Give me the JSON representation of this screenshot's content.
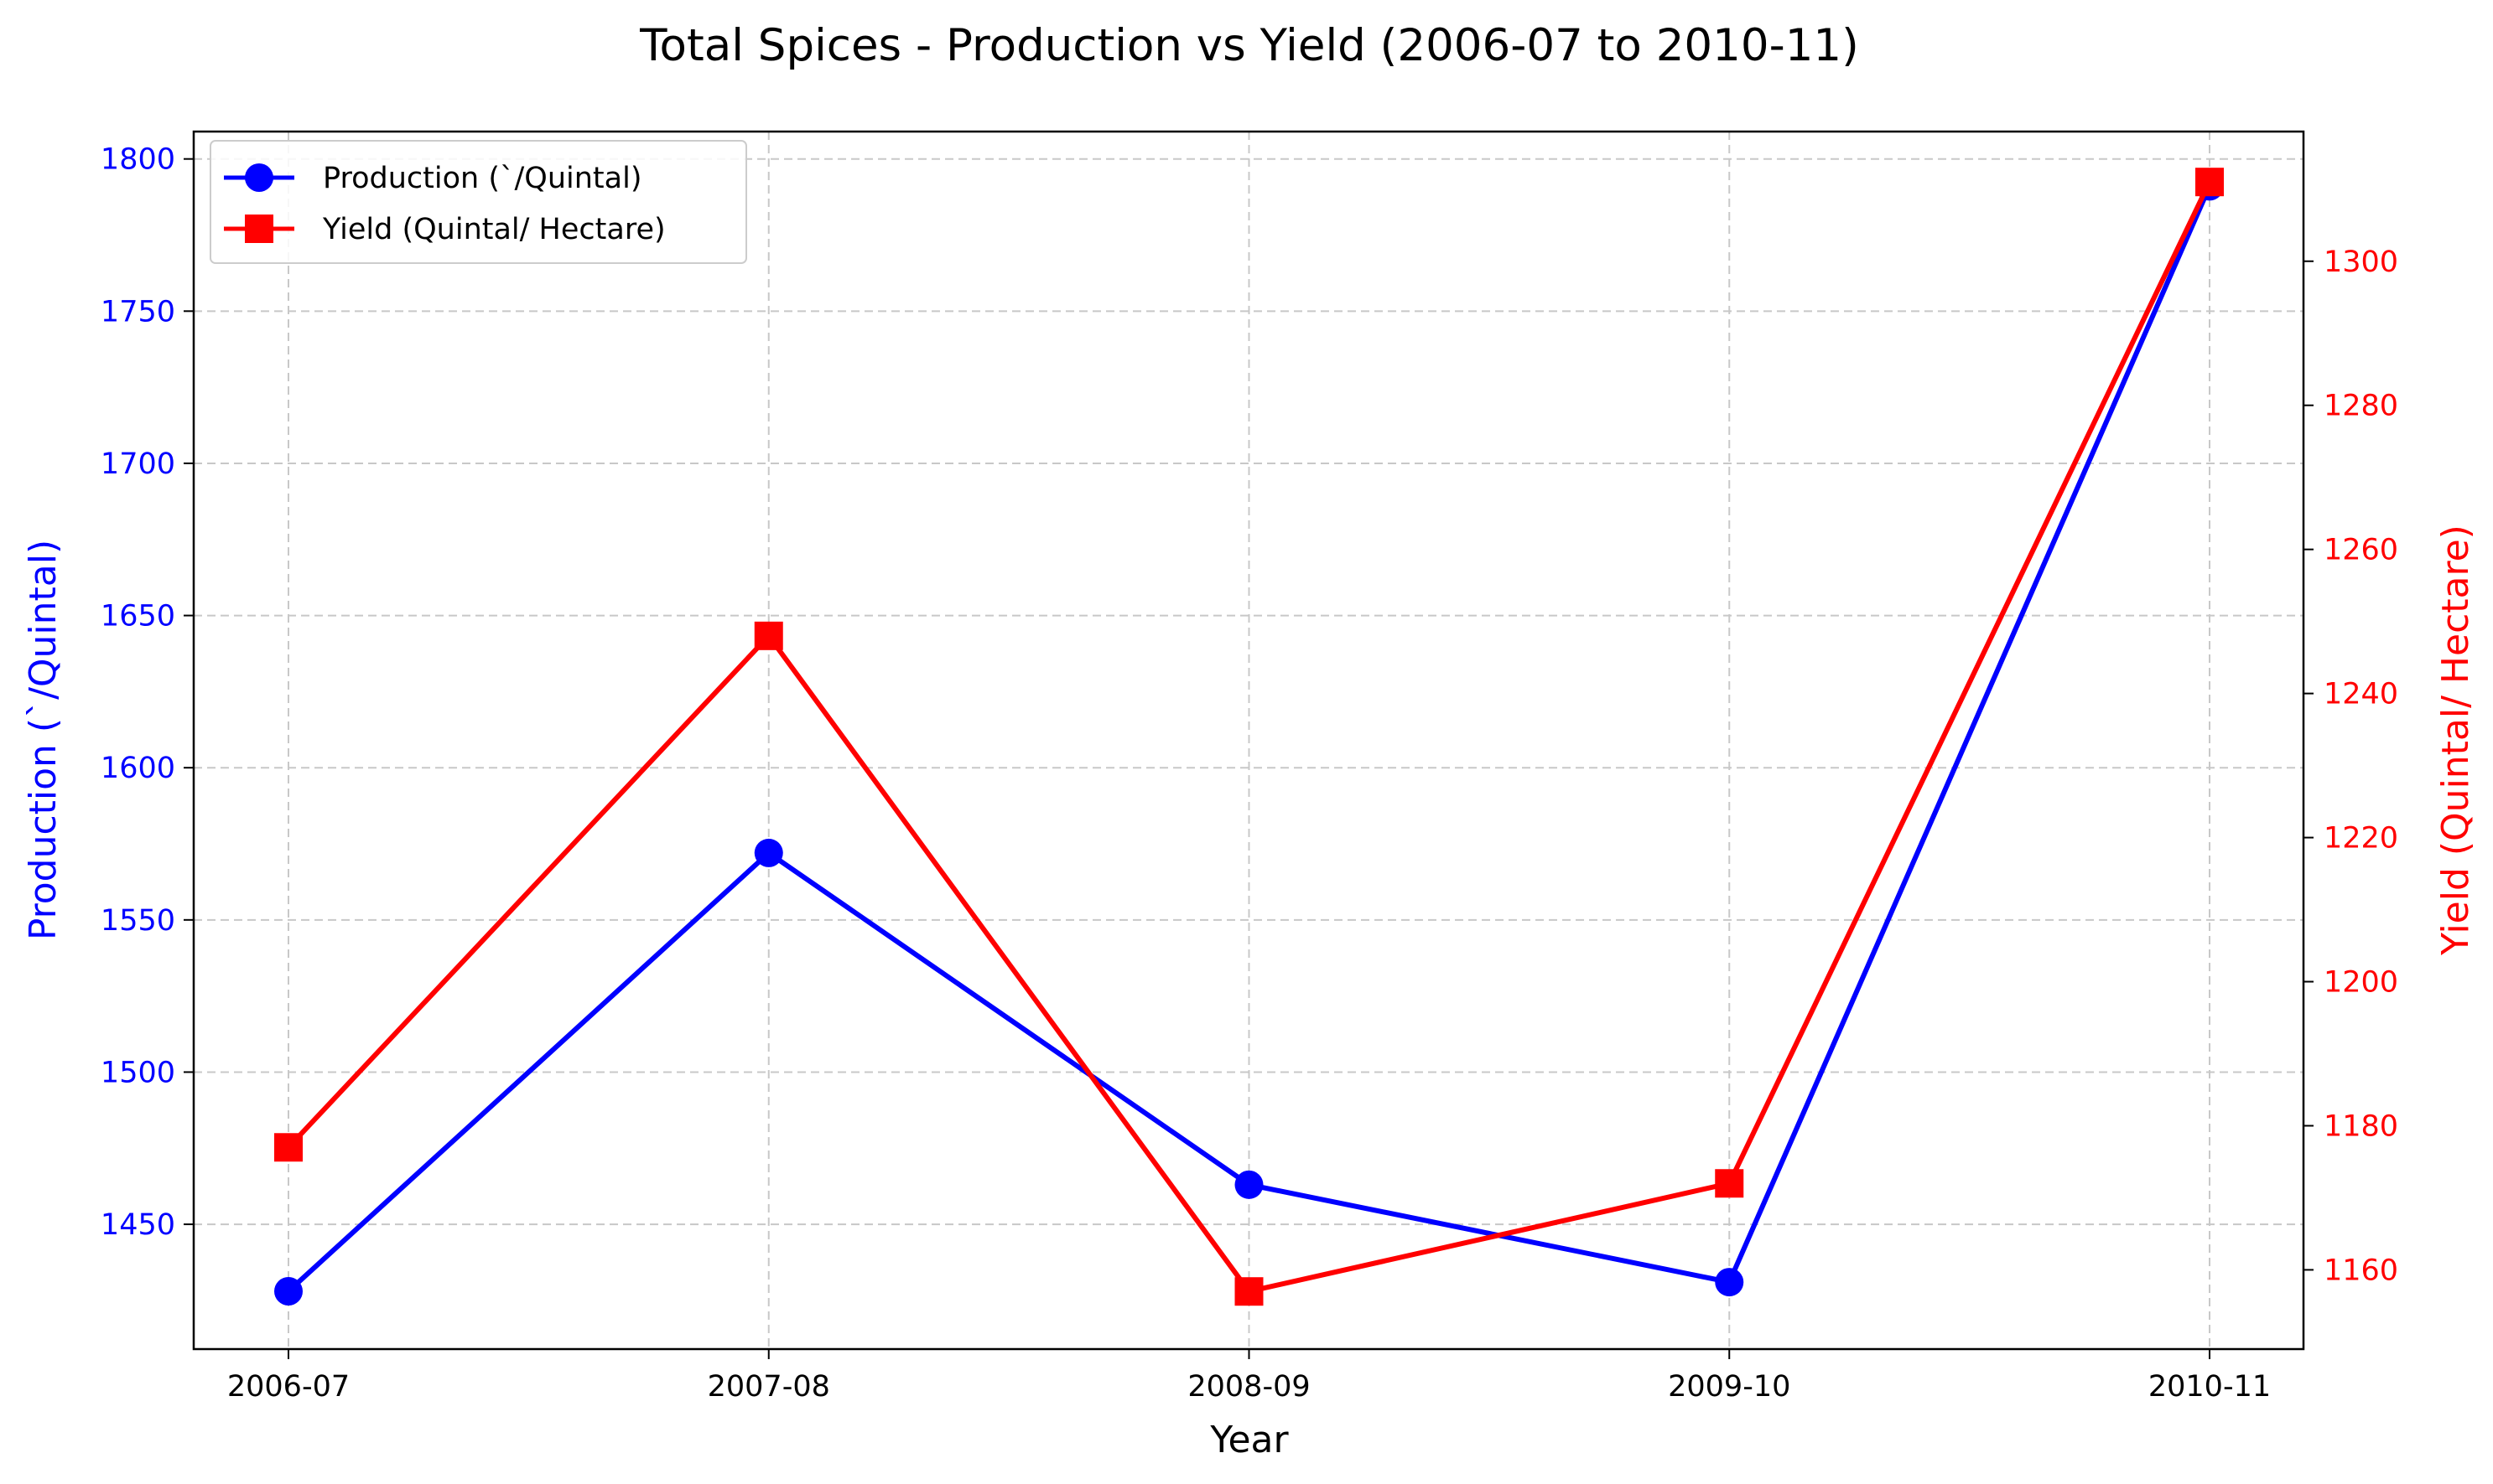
{
  "chart_data": {
    "type": "line",
    "title": "Total Spices - Production vs Yield (2006-07 to 2010-11)",
    "xlabel": "Year",
    "categories": [
      "2006-07",
      "2007-08",
      "2008-09",
      "2009-10",
      "2010-11"
    ],
    "y_left": {
      "label": "Production (`/Quintal)",
      "color": "#0000ff",
      "ylim": [
        1409,
        1809
      ],
      "ticks": [
        1450,
        1500,
        1550,
        1600,
        1650,
        1700,
        1750,
        1800
      ]
    },
    "y_right": {
      "label": "Yield (Quintal/ Hectare)",
      "color": "#ff0000",
      "ylim": [
        1149,
        1318
      ],
      "ticks": [
        1160,
        1180,
        1200,
        1220,
        1240,
        1260,
        1280,
        1300
      ]
    },
    "series": [
      {
        "name": "Production (`/Quintal)",
        "axis": "left",
        "marker": "circle",
        "color": "#0000ff",
        "values": [
          1428,
          1572,
          1463,
          1431,
          1791
        ]
      },
      {
        "name": "Yield (Quintal/ Hectare)",
        "axis": "right",
        "marker": "square",
        "color": "#ff0000",
        "values": [
          1177,
          1248,
          1157,
          1172,
          1311
        ]
      }
    ],
    "grid": true,
    "legend": "top-left"
  }
}
